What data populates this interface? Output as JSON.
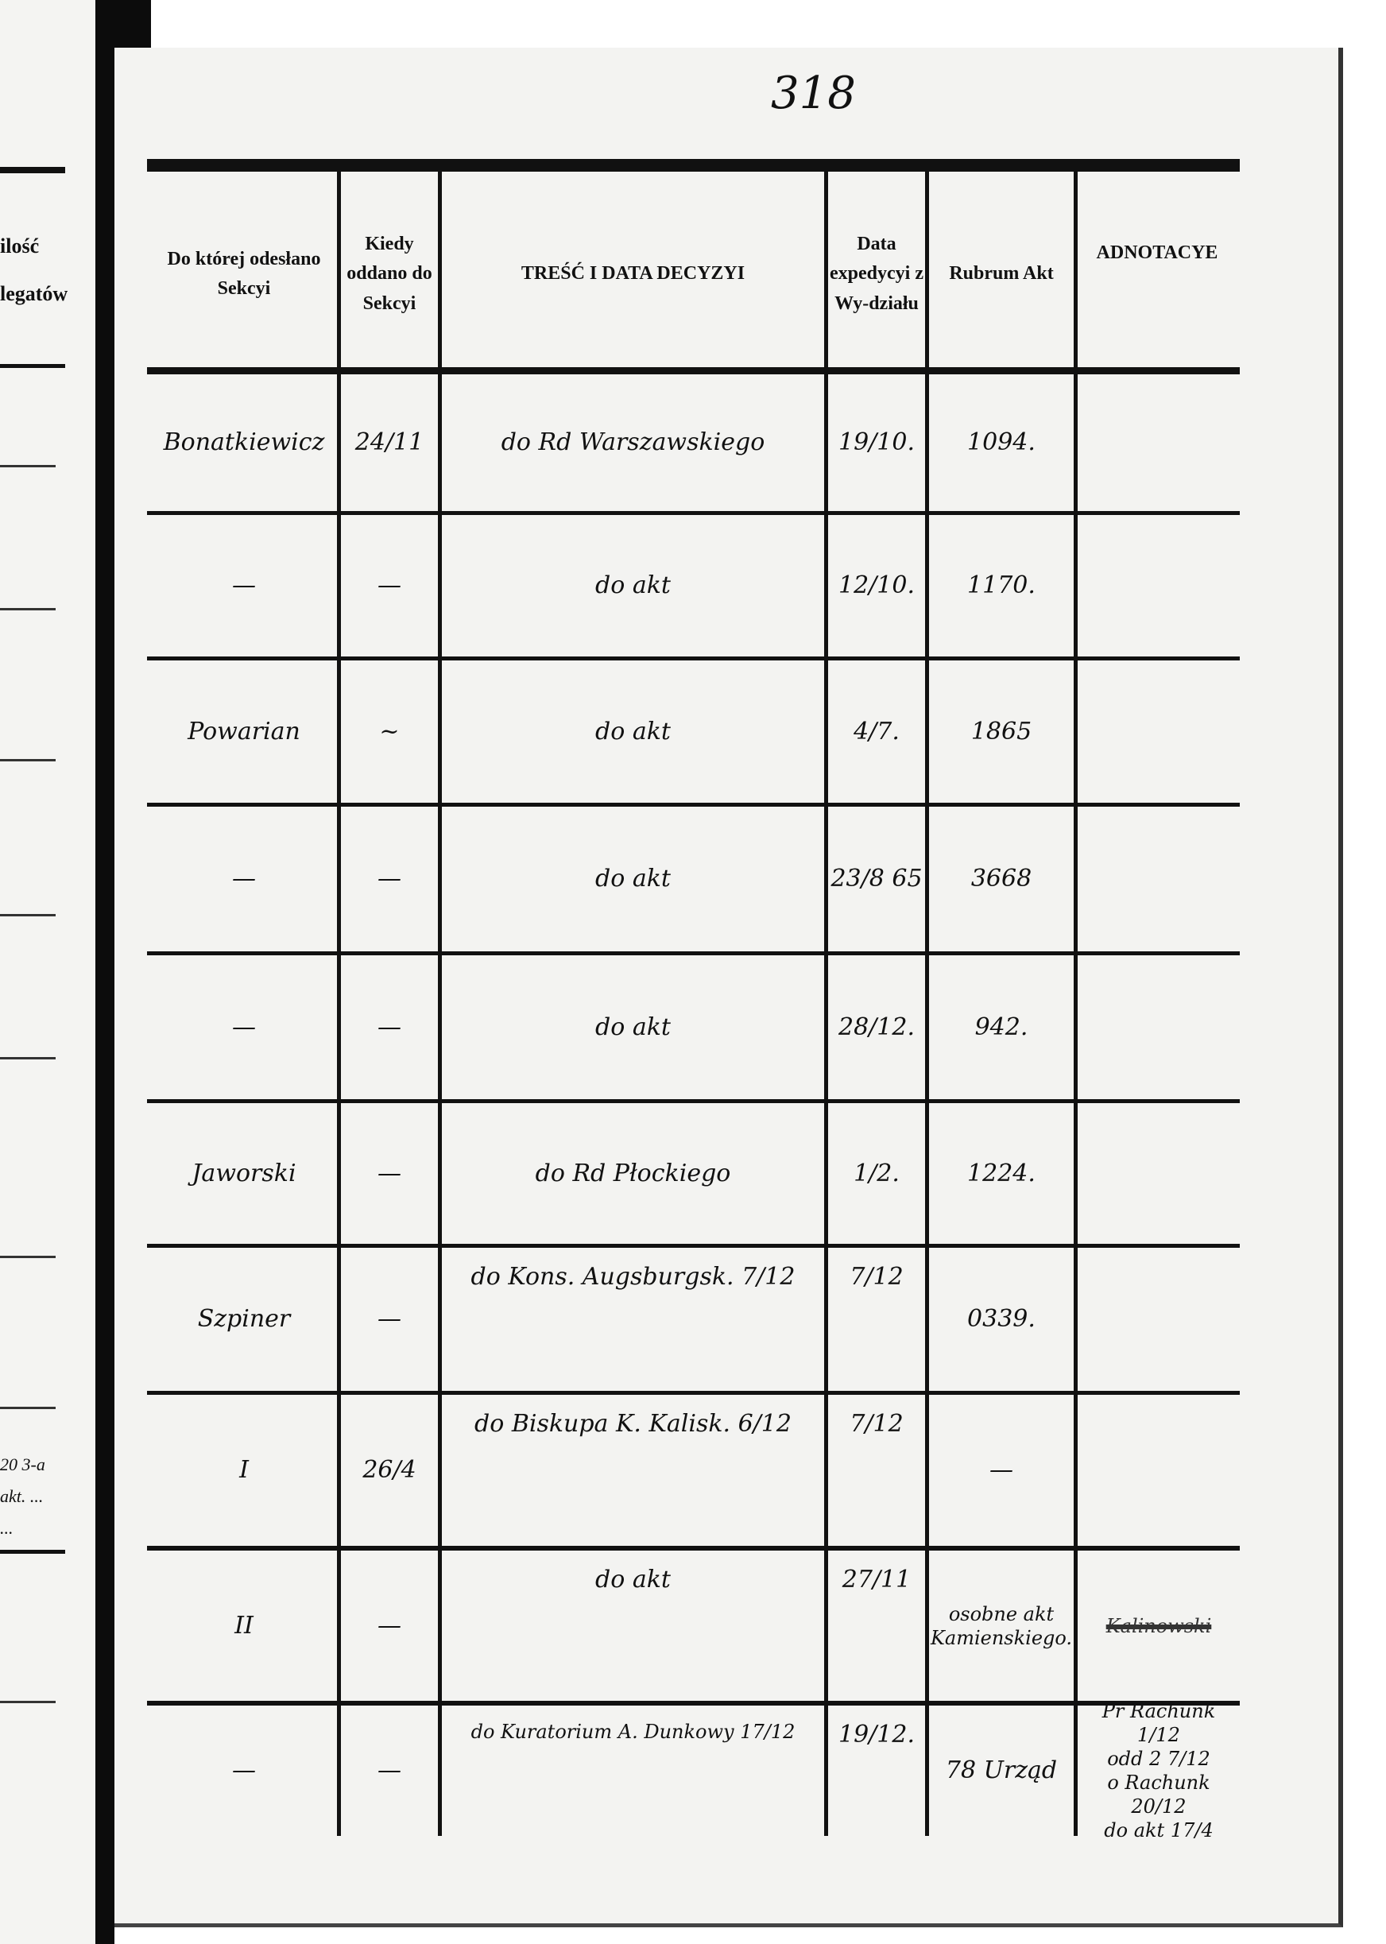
{
  "page_number": "318",
  "previous_page": {
    "header_lines": [
      "ilość",
      "legatów"
    ],
    "fragment_lines": [
      "20 3-a",
      "akt. ...",
      "..."
    ]
  },
  "columns": [
    "Do której odesłano Sekcyi",
    "Kiedy oddano do Sekcyi",
    "TREŚĆ I DATA DECYZYI",
    "Data expedycyi z Wy-działu",
    "Rubrum Akt",
    "ADNOTACYE"
  ],
  "rows": [
    {
      "sekcja": "Bonatkiewicz",
      "kiedy": "24/11",
      "tresc": "do Rd Warszawskiego",
      "data_exp": "19/10.",
      "rubrum": "1094.",
      "adnotacye": ""
    },
    {
      "sekcja": "—",
      "kiedy": "—",
      "tresc": "do akt",
      "data_exp": "12/10.",
      "rubrum": "1170.",
      "adnotacye": ""
    },
    {
      "sekcja": "Powarian",
      "kiedy": "~",
      "tresc": "do akt",
      "data_exp": "4/7.",
      "rubrum": "1865",
      "adnotacye": ""
    },
    {
      "sekcja": "—",
      "kiedy": "—",
      "tresc": "do akt",
      "data_exp": "23/8 65",
      "rubrum": "3668",
      "adnotacye": ""
    },
    {
      "sekcja": "—",
      "kiedy": "—",
      "tresc": "do akt",
      "data_exp": "28/12.",
      "rubrum": "942.",
      "adnotacye": ""
    },
    {
      "sekcja": "Jaworski",
      "kiedy": "—",
      "tresc": "do Rd Płockiego",
      "data_exp": "1/2.",
      "rubrum": "1224.",
      "adnotacye": ""
    },
    {
      "sekcja": "Szpiner",
      "kiedy": "—",
      "tresc": "do Kons. Augsburgsk. 7/12",
      "data_exp": "7/12",
      "rubrum": "0339.",
      "adnotacye": ""
    },
    {
      "sekcja": "I",
      "kiedy": "26/4",
      "tresc": "do Biskupa K. Kalisk. 6/12",
      "data_exp": "7/12",
      "rubrum": "—",
      "adnotacye": ""
    },
    {
      "sekcja": "II",
      "kiedy": "—",
      "tresc": "do akt",
      "data_exp": "27/11",
      "rubrum": "osobne akt Kamienskiego.",
      "adnotacye": "Kalinowski",
      "adnotacye_struck": true
    },
    {
      "sekcja": "—",
      "kiedy": "—",
      "tresc": "do Kuratorium A. Dunkowy 17/12",
      "data_exp": "19/12.",
      "rubrum": "78 Urząd",
      "adnotacye": "Pr Rachunk 1/12\nodd 2 7/12\no Rachunk 20/12\ndo akt 17/4"
    }
  ]
}
